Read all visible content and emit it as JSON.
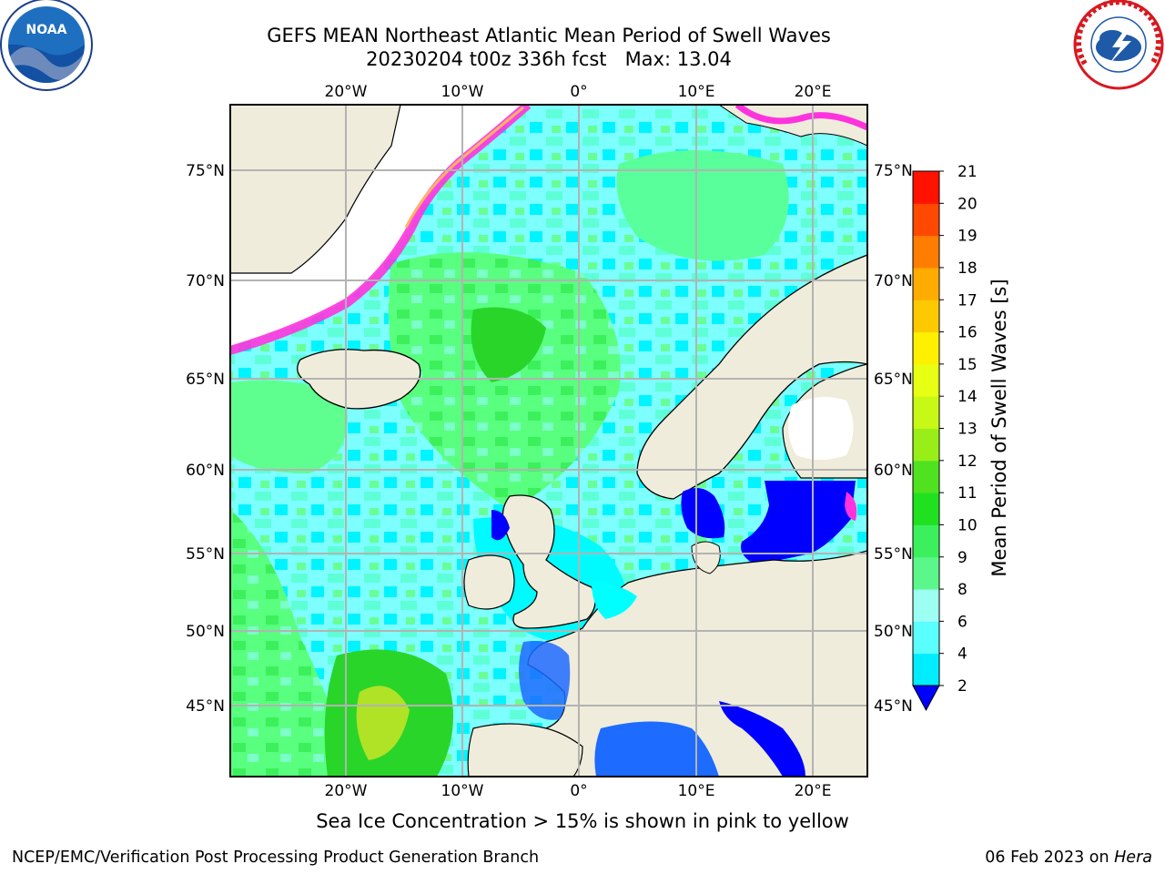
{
  "header": {
    "title_line1": "GEFS MEAN Northeast Atlantic Mean Period of Swell Waves",
    "title_line2": "20230204 t00z 336h fcst   Max: 13.04"
  },
  "logos": {
    "left": {
      "icon": "noaa-logo-icon",
      "text": "NOAA"
    },
    "right": {
      "icon": "nws-logo-icon",
      "text": "NATIONAL WEATHER SERVICE"
    }
  },
  "map": {
    "lon_labels": [
      "20°W",
      "10°W",
      "0°",
      "10°E",
      "20°E"
    ],
    "lat_labels": [
      "75°N",
      "70°N",
      "65°N",
      "60°N",
      "55°N",
      "50°N",
      "45°N"
    ],
    "land_color": "#efecdb",
    "ocean_colors": [
      "#00ffff",
      "#7fffff",
      "#5fff8f",
      "#40ff60",
      "#2ad52a",
      "#0000ff",
      "#006eff"
    ]
  },
  "colorbar": {
    "label": "Mean Period of Swell Waves [s]",
    "ticks": [
      "2",
      "4",
      "6",
      "8",
      "9",
      "10",
      "11",
      "12",
      "13",
      "14",
      "15",
      "16",
      "17",
      "18",
      "19",
      "20",
      "21"
    ],
    "colors": [
      "#0072ff",
      "#00ecff",
      "#5affff",
      "#9dfff2",
      "#5cf78a",
      "#3bf05c",
      "#20e120",
      "#50e220",
      "#9aee18",
      "#c7f816",
      "#e6ff12",
      "#fff000",
      "#ffc900",
      "#ffab00",
      "#ff7d00",
      "#ff4800",
      "#ff1200",
      "#ff0000"
    ]
  },
  "caption": "Sea Ice Concentration > 15% is shown in pink to yellow",
  "footer": {
    "left": "NCEP/EMC/Verification Post Processing Product Generation Branch",
    "date": "06 Feb 2023 on ",
    "host": "Hera"
  }
}
